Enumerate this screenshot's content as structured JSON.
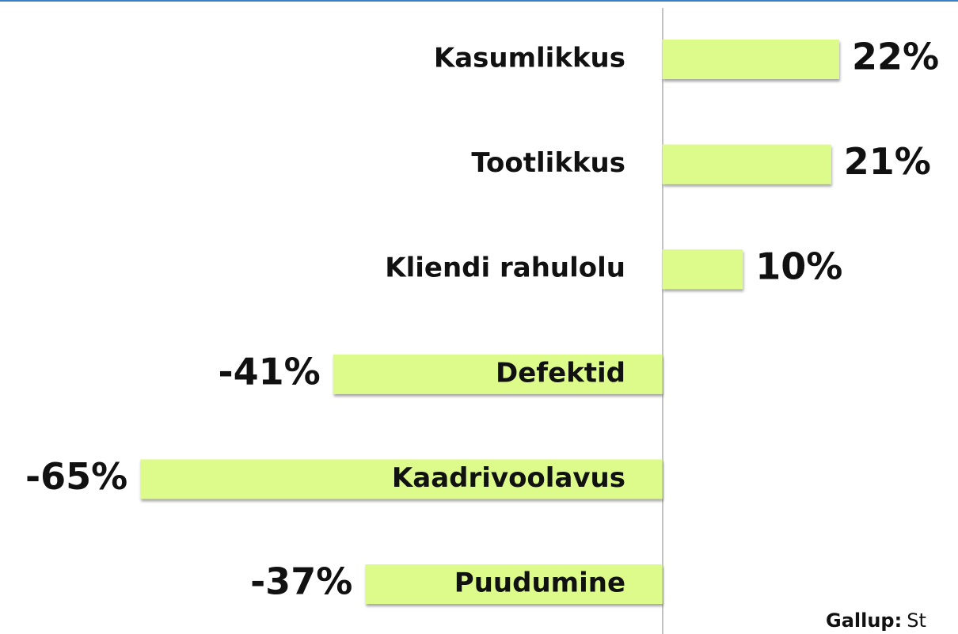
{
  "chart_data": {
    "type": "barh",
    "categories": [
      "Kasumlikkus",
      "Tootlikkus",
      "Kliendi rahulolu",
      "Defektid",
      "Kaadrivoolavus",
      "Puudumine"
    ],
    "values": [
      22,
      21,
      10,
      -41,
      -65,
      -37
    ],
    "value_labels": [
      "22%",
      "21%",
      "10%",
      "-41%",
      "-65%",
      "-37%"
    ],
    "color": "#dcfb8a",
    "xlim": [
      -80,
      36
    ],
    "source_label": "Gallup:",
    "source_text": "St"
  }
}
